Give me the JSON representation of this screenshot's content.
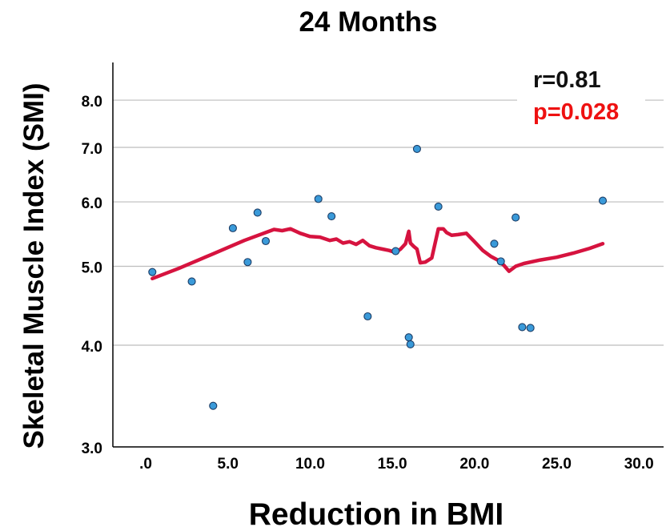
{
  "chart_data": {
    "type": "scatter",
    "title": "24 Months",
    "xlabel": "Reduction in BMI",
    "ylabel": "Skeletal Muscle Index (SMI)",
    "xlim": [
      -2,
      31.5
    ],
    "ylim": [
      3.0,
      8.9
    ],
    "y_scale": "log",
    "x_ticks": [
      0,
      5,
      10,
      15,
      20,
      25,
      30
    ],
    "x_tick_labels": [
      ".0",
      "5.0",
      "10.0",
      "15.0",
      "20.0",
      "25.0",
      "30.0"
    ],
    "y_ticks": [
      3.0,
      4.0,
      5.0,
      6.0,
      7.0,
      8.0
    ],
    "y_tick_labels": [
      "3.0",
      "4.0",
      "5.0",
      "6.0",
      "7.0",
      "8.0"
    ],
    "grid": "horizontal",
    "annotations": {
      "r": "r=0.81",
      "p": "p=0.028"
    },
    "colors": {
      "points": "#3a9ad9",
      "point_edge": "#1c3d66",
      "fit_line": "#d6133f",
      "p_text": "#ee1111",
      "grid": "#bdbdbd"
    },
    "series": [
      {
        "type": "points",
        "x": [
          0.4,
          2.8,
          4.1,
          5.3,
          6.2,
          6.8,
          7.3,
          10.5,
          11.3,
          13.5,
          15.2,
          16.0,
          16.1,
          16.5,
          17.8,
          21.2,
          21.6,
          22.5,
          22.9,
          23.4,
          27.8
        ],
        "y": [
          4.92,
          4.79,
          3.37,
          5.57,
          5.06,
          5.82,
          5.37,
          6.05,
          5.76,
          4.34,
          5.22,
          4.09,
          4.01,
          6.97,
          5.92,
          5.33,
          5.07,
          5.74,
          4.21,
          4.2,
          6.02
        ]
      },
      {
        "type": "loess",
        "x": [
          0.4,
          2.0,
          4.0,
          6.0,
          7.8,
          8.3,
          8.8,
          9.4,
          10.0,
          10.6,
          11.2,
          11.6,
          12.0,
          12.4,
          12.8,
          13.2,
          13.6,
          14.0,
          14.4,
          14.8,
          15.2,
          15.5,
          15.8,
          16.0,
          16.1,
          16.3,
          16.5,
          16.7,
          17.0,
          17.4,
          17.8,
          18.1,
          18.3,
          18.6,
          19.0,
          19.5,
          20.0,
          20.5,
          21.0,
          21.4,
          21.8,
          22.1,
          22.5,
          23.0,
          24.0,
          25.0,
          26.0,
          27.0,
          27.8
        ],
        "y": [
          4.83,
          4.97,
          5.17,
          5.38,
          5.55,
          5.53,
          5.56,
          5.49,
          5.44,
          5.43,
          5.38,
          5.4,
          5.34,
          5.36,
          5.32,
          5.38,
          5.3,
          5.27,
          5.25,
          5.23,
          5.2,
          5.25,
          5.33,
          5.52,
          5.34,
          5.29,
          5.25,
          5.05,
          5.06,
          5.12,
          5.56,
          5.56,
          5.5,
          5.46,
          5.47,
          5.49,
          5.36,
          5.23,
          5.14,
          5.09,
          5.01,
          4.93,
          5.0,
          5.04,
          5.09,
          5.13,
          5.19,
          5.26,
          5.33
        ]
      }
    ]
  }
}
